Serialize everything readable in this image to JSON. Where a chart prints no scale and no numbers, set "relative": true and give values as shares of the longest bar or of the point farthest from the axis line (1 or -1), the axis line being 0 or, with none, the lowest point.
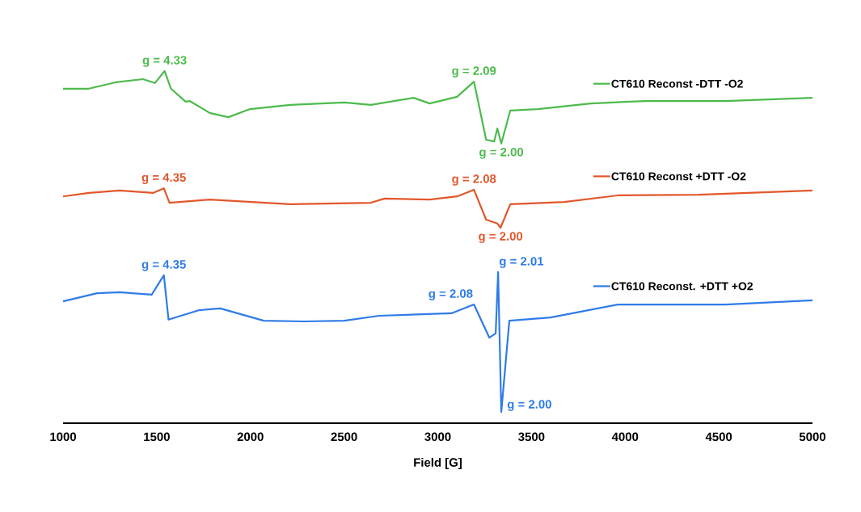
{
  "chart_data": {
    "type": "line",
    "relative": true,
    "xlabel": "Field [G]",
    "xlim": [
      1000,
      5000
    ],
    "xticks": [
      1000,
      1500,
      2000,
      2500,
      3000,
      3500,
      4000,
      4500,
      5000
    ],
    "grid": false,
    "legend": "right",
    "marker": "none",
    "line_style": "solid",
    "series": [
      {
        "name": "CT610 Reconst -DTT -O2",
        "color": "#4cbb4c",
        "x": [
          1000,
          1138,
          1280,
          1426,
          1490,
          1542,
          1576,
          1654,
          1675,
          1783,
          1882,
          1998,
          2213,
          2501,
          2643,
          2871,
          2957,
          3103,
          3193,
          3258,
          3301,
          3318,
          3339,
          3387,
          3533,
          3817,
          4105,
          4535,
          5000
        ],
        "values": [
          0.95,
          0.95,
          0.968,
          0.977,
          0.966,
          1.0,
          0.95,
          0.913,
          0.915,
          0.881,
          0.869,
          0.892,
          0.904,
          0.911,
          0.904,
          0.924,
          0.908,
          0.927,
          0.97,
          0.805,
          0.8,
          0.837,
          0.794,
          0.888,
          0.892,
          0.908,
          0.915,
          0.915,
          0.924
        ]
      },
      {
        "name": "CT610 Reconst +DTT -O2",
        "color": "#e2572c",
        "x": [
          1000,
          1138,
          1301,
          1482,
          1538,
          1568,
          1783,
          2213,
          2643,
          2716,
          2957,
          3103,
          3193,
          3258,
          3318,
          3335,
          3387,
          3675,
          3963,
          4393,
          5000
        ],
        "values": [
          0.644,
          0.654,
          0.661,
          0.654,
          0.667,
          0.626,
          0.635,
          0.622,
          0.626,
          0.638,
          0.635,
          0.644,
          0.663,
          0.578,
          0.567,
          0.555,
          0.622,
          0.628,
          0.647,
          0.649,
          0.661
        ]
      },
      {
        "name": "CT610 Reconst. +DTT +O2",
        "color": "#2f7be8",
        "x": [
          1000,
          1181,
          1301,
          1473,
          1538,
          1563,
          1727,
          1839,
          2071,
          2286,
          2501,
          2686,
          3073,
          3193,
          3275,
          3309,
          3322,
          3339,
          3382,
          3602,
          3963,
          4535,
          5000
        ],
        "values": [
          0.346,
          0.369,
          0.372,
          0.365,
          0.42,
          0.294,
          0.321,
          0.326,
          0.291,
          0.289,
          0.291,
          0.305,
          0.312,
          0.337,
          0.243,
          0.255,
          0.429,
          0.032,
          0.291,
          0.3,
          0.337,
          0.337,
          0.349
        ]
      }
    ],
    "annotations": [
      {
        "text": "g = 4.33",
        "x": 1542,
        "y": 1.0
      },
      {
        "text": "g = 2.09",
        "x": 3193,
        "y": 0.97
      },
      {
        "text": "g = 2.00",
        "x": 3339,
        "y": 0.794
      },
      {
        "text": "g = 4.35",
        "x": 1538,
        "y": 0.667
      },
      {
        "text": "g = 2.08",
        "x": 3193,
        "y": 0.663
      },
      {
        "text": "g = 2.00",
        "x": 3335,
        "y": 0.555
      },
      {
        "text": "g = 4.35",
        "x": 1538,
        "y": 0.42
      },
      {
        "text": "g = 2.08",
        "x": 3193,
        "y": 0.337
      },
      {
        "text": "g = 2.01",
        "x": 3322,
        "y": 0.429
      },
      {
        "text": "g = 2.00",
        "x": 3339,
        "y": 0.032
      }
    ]
  }
}
